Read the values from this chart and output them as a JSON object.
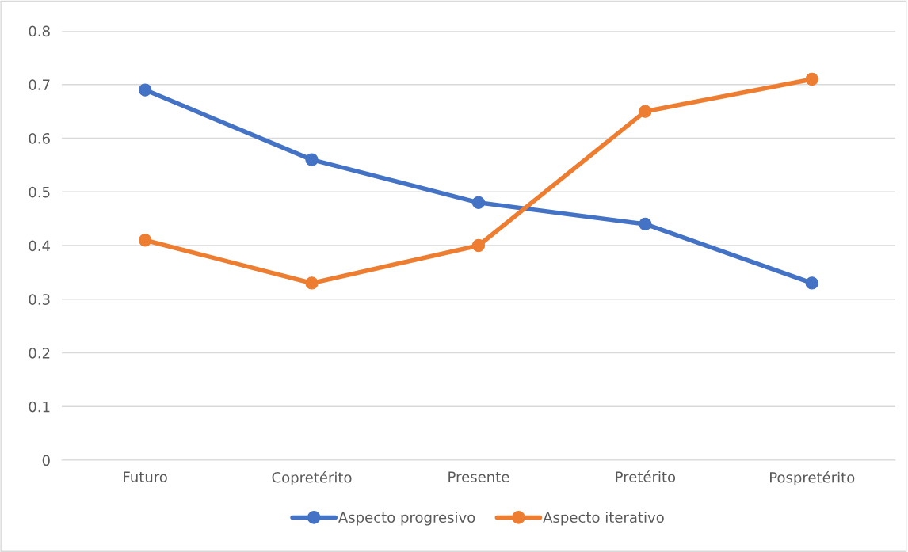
{
  "chart_data": {
    "type": "line",
    "categories": [
      "Futuro",
      "Copretérito",
      "Presente",
      "Pretérito",
      "Pospretérito"
    ],
    "series": [
      {
        "name": "Aspecto progresivo",
        "color": "#4472c4",
        "values": [
          0.69,
          0.56,
          0.48,
          0.44,
          0.33
        ]
      },
      {
        "name": "Aspecto iterativo",
        "color": "#ed7d31",
        "values": [
          0.41,
          0.33,
          0.4,
          0.65,
          0.71
        ]
      }
    ],
    "ylim": [
      0,
      0.8
    ],
    "yticks": [
      0,
      0.1,
      0.2,
      0.3,
      0.4,
      0.5,
      0.6,
      0.7,
      0.8
    ],
    "grid": "y",
    "legend": "bottom",
    "marker": "circle",
    "line_style": "solid"
  }
}
